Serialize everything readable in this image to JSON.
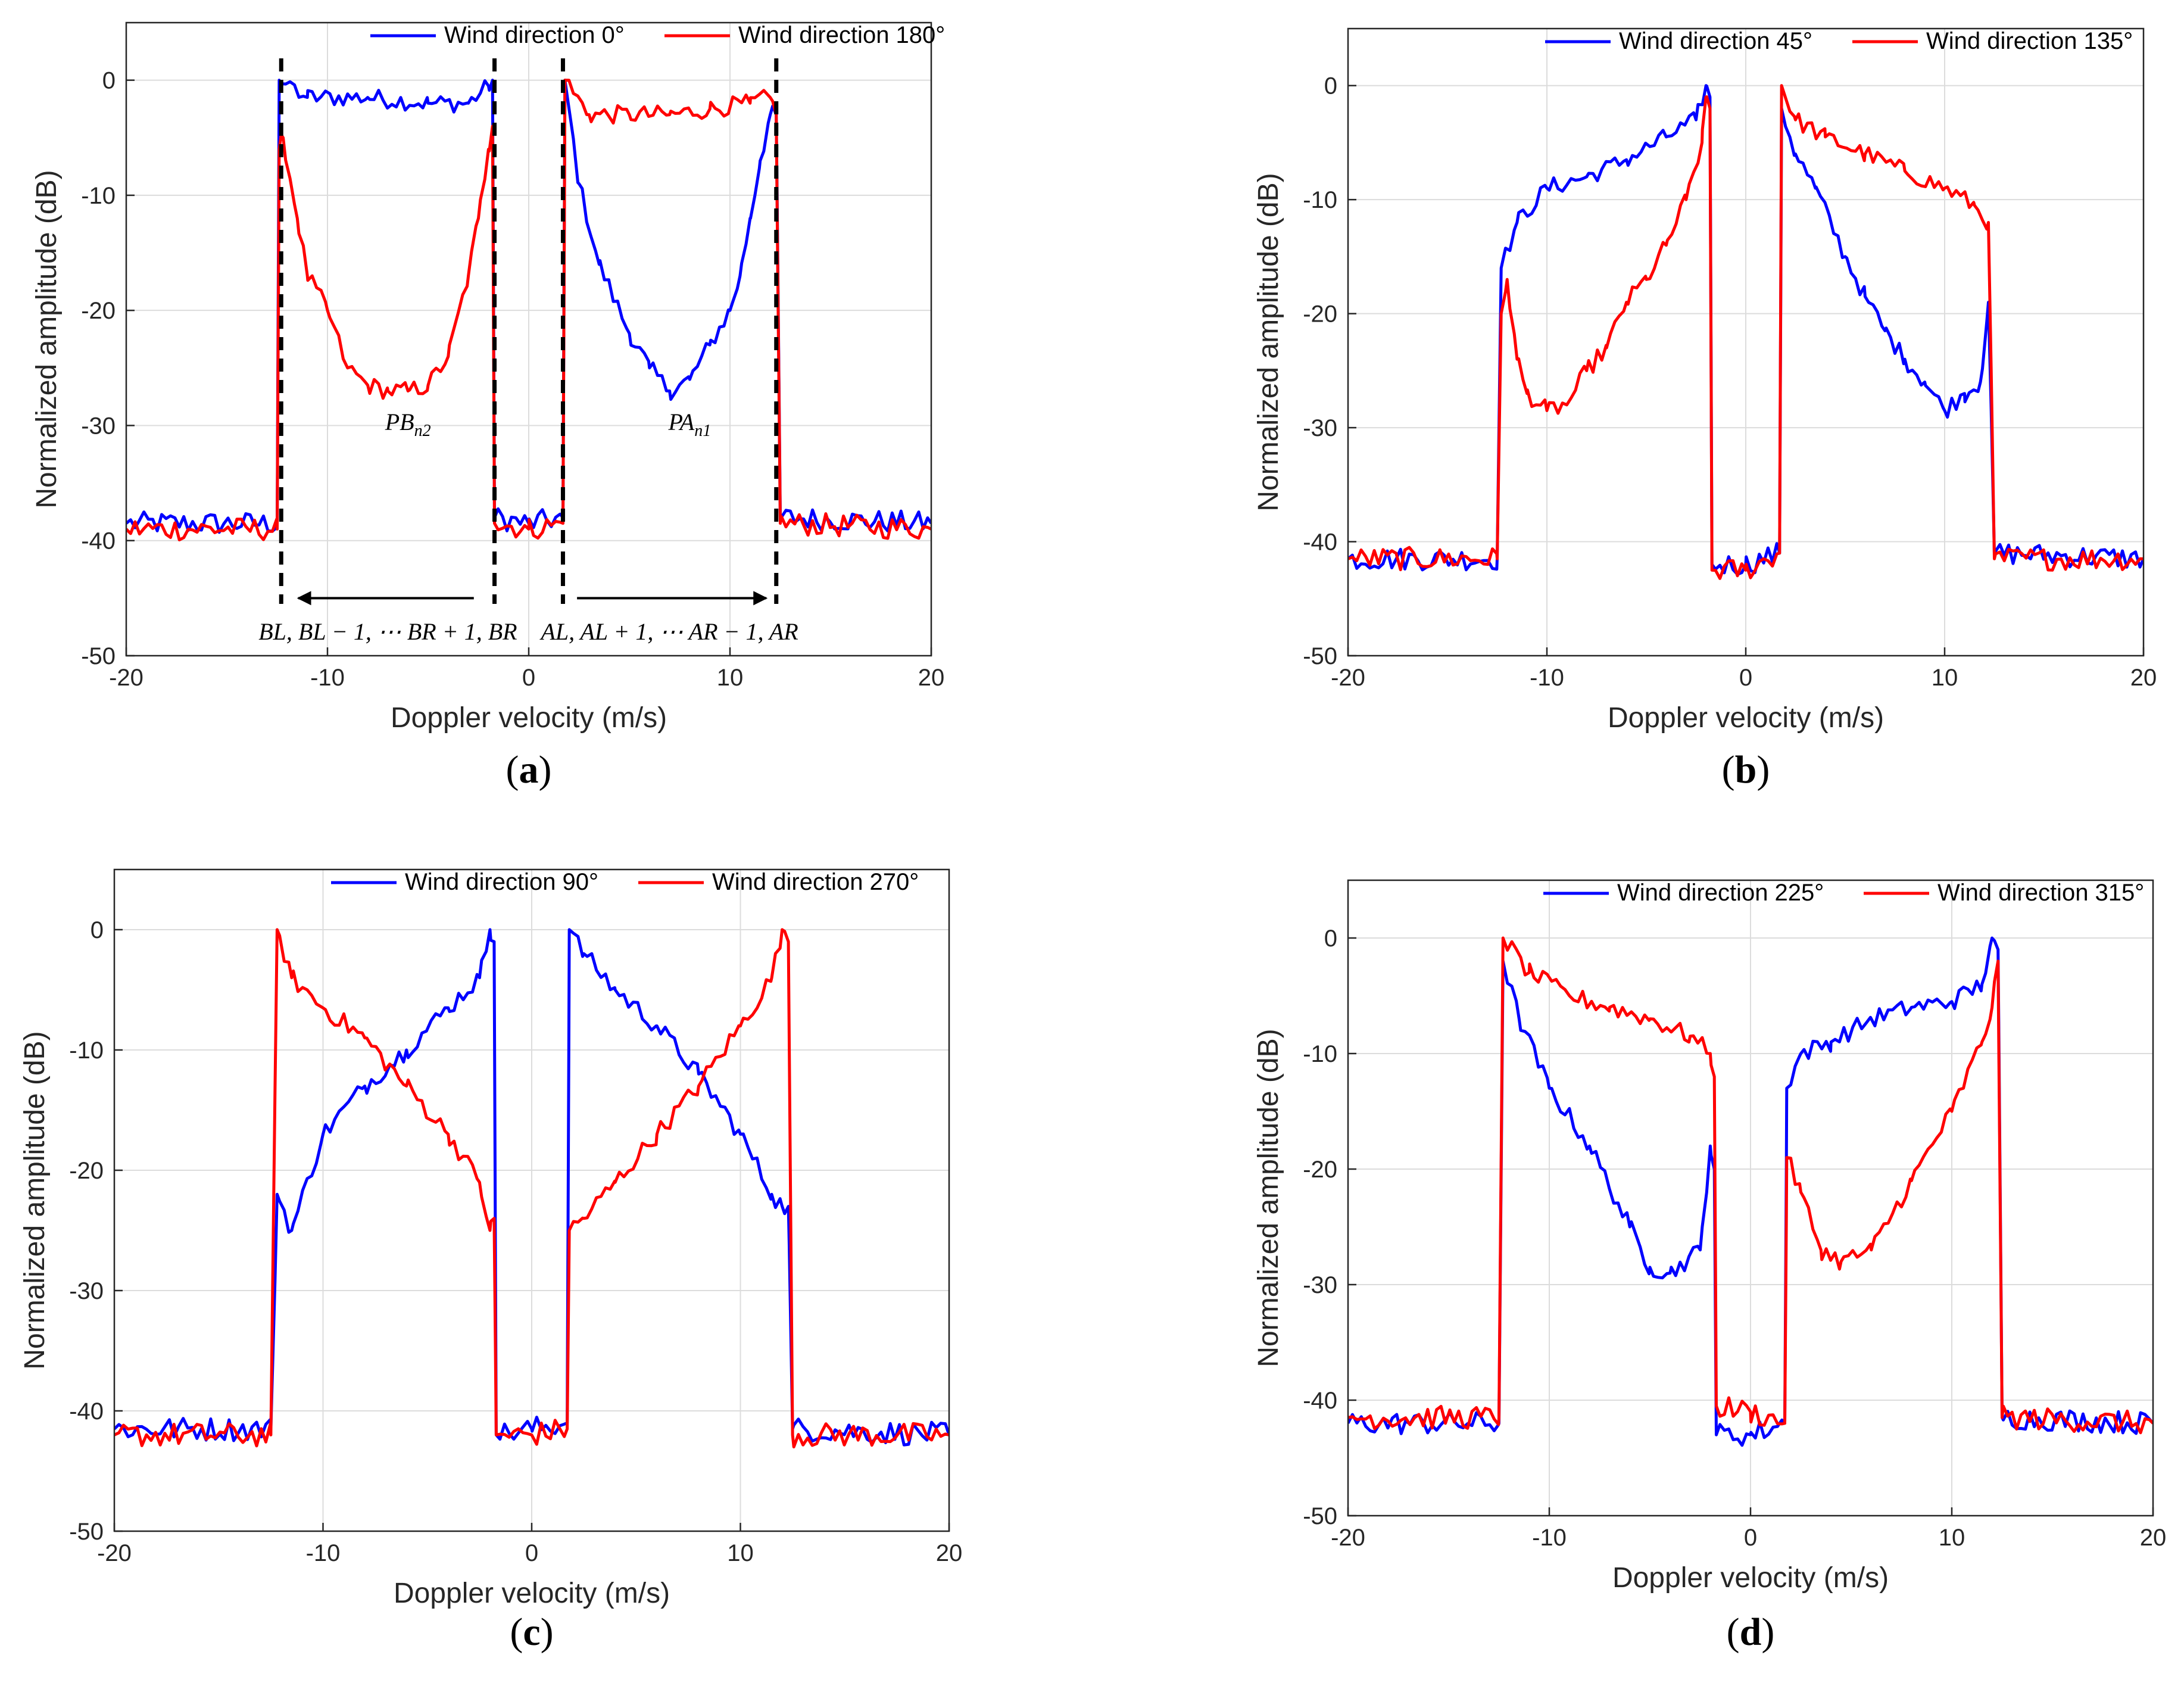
{
  "chart_data": [
    {
      "panel": "(a)",
      "panel_letter": "a",
      "type": "line",
      "xlabel": "Doppler velocity (m/s)",
      "ylabel": "Normalized amplitude (dB)",
      "xlim": [
        -20,
        20
      ],
      "ylim": [
        -50,
        5
      ],
      "xticks": [
        -20,
        -10,
        0,
        10,
        20
      ],
      "yticks": [
        0,
        -10,
        -20,
        -30,
        -40,
        -50
      ],
      "grid": true,
      "legend_position": "top",
      "series": [
        {
          "name": "Wind direction 0°",
          "color": "#0000ff",
          "x": [
            -20,
            -12.5,
            -12.4,
            -11,
            -8,
            -5,
            -3,
            -2,
            -1.8,
            -1.7,
            0,
            1.7,
            1.8,
            2.5,
            3.5,
            5,
            6,
            7,
            8,
            9,
            10,
            10.5,
            11,
            11.5,
            12,
            12.3,
            12.5,
            20
          ],
          "values": [
            -38.5,
            -38.5,
            0,
            -1.5,
            -1.5,
            -2,
            -2,
            -0.5,
            0,
            -38,
            -38.5,
            -38,
            0,
            -9,
            -16,
            -22,
            -25,
            -27,
            -26,
            -23,
            -20,
            -17,
            -12,
            -7,
            -3,
            -3,
            -38,
            -38.5
          ]
        },
        {
          "name": "Wind direction 180°",
          "color": "#ff0000",
          "x": [
            -20,
            -12.5,
            -12.4,
            -12.2,
            -11.5,
            -11,
            -10,
            -9,
            -8,
            -7,
            -6,
            -5,
            -4,
            -3,
            -2.5,
            -2,
            -1.8,
            -1.7,
            0,
            1.7,
            1.8,
            3,
            5,
            7,
            9,
            11,
            12,
            12.3,
            12.5,
            20
          ],
          "values": [
            -39,
            -39,
            -6,
            -5,
            -12,
            -17,
            -20,
            -25,
            -26.5,
            -27,
            -27,
            -26.5,
            -24,
            -17,
            -12,
            -6,
            -4,
            -38.5,
            -39,
            -38.5,
            0,
            -3,
            -3,
            -3,
            -2.5,
            -2,
            -1.5,
            -3,
            -38.5,
            -39
          ]
        }
      ],
      "annotations": {
        "pb": "PB",
        "pb_sub": "n2",
        "pa": "PA",
        "pa_sub": "n1",
        "left_range": "BL, BL − 1, ⋯ BR + 1, BR",
        "right_range": "AL, AL + 1, ⋯ AR − 1, AR",
        "dashed_x": [
          -12.3,
          -1.7,
          1.7,
          12.3
        ]
      }
    },
    {
      "panel": "(b)",
      "panel_letter": "b",
      "type": "line",
      "xlabel": "Doppler velocity (m/s)",
      "ylabel": "Normalized amplitude (dB)",
      "xlim": [
        -20,
        20
      ],
      "ylim": [
        -50,
        5
      ],
      "xticks": [
        -20,
        -10,
        0,
        10,
        20
      ],
      "yticks": [
        0,
        -10,
        -20,
        -30,
        -40,
        -50
      ],
      "grid": true,
      "legend_position": "top",
      "series": [
        {
          "name": "Wind direction 45°",
          "color": "#0000ff",
          "x": [
            -20,
            -12.5,
            -12.3,
            -11.5,
            -10,
            -8,
            -6,
            -4,
            -2.5,
            -2,
            -1.8,
            -1.7,
            0,
            1.7,
            1.8,
            2.5,
            3.5,
            5,
            6,
            7,
            8,
            9,
            10,
            11,
            11.8,
            12.2,
            12.5,
            20
          ],
          "values": [
            -41.5,
            -41.5,
            -16,
            -12,
            -9,
            -8,
            -6.5,
            -4.5,
            -3,
            0,
            -1,
            -42,
            -42,
            -41,
            -2,
            -6,
            -9,
            -15,
            -18.5,
            -21.5,
            -24,
            -26,
            -28.5,
            -27,
            -26,
            -19,
            -41,
            -41.5
          ]
        },
        {
          "name": "Wind direction 135°",
          "color": "#ff0000",
          "x": [
            -20,
            -12.5,
            -12.3,
            -12,
            -11.5,
            -11,
            -10,
            -9,
            -8,
            -7,
            -6,
            -5,
            -4,
            -3,
            -2.2,
            -2,
            -1.8,
            -1.7,
            0,
            1.7,
            1.8,
            2.5,
            4,
            6,
            8,
            10,
            11.5,
            12.2,
            12.5,
            20
          ],
          "values": [
            -41.5,
            -41.5,
            -20,
            -17,
            -24,
            -27,
            -28.5,
            -28,
            -25,
            -23,
            -19,
            -17,
            -14,
            -10,
            -5,
            -1,
            -2,
            -42.5,
            -42.5,
            -41,
            0,
            -3,
            -4.5,
            -6,
            -7.5,
            -9,
            -10.5,
            -12,
            -41.5,
            -41.5
          ]
        }
      ]
    },
    {
      "panel": "(c)",
      "panel_letter": "c",
      "type": "line",
      "xlabel": "Doppler velocity (m/s)",
      "ylabel": "Normalized amplitude (dB)",
      "xlim": [
        -20,
        20
      ],
      "ylim": [
        -50,
        5
      ],
      "xticks": [
        -20,
        -10,
        0,
        10,
        20
      ],
      "yticks": [
        0,
        -10,
        -20,
        -30,
        -40,
        -50
      ],
      "grid": true,
      "legend_position": "top",
      "series": [
        {
          "name": "Wind direction 90°",
          "color": "#0000ff",
          "x": [
            -20,
            -12.5,
            -12.2,
            -11.5,
            -10,
            -8,
            -6,
            -4,
            -2.5,
            -2,
            -1.8,
            -1.7,
            0,
            1.7,
            1.8,
            2.5,
            4,
            6,
            8,
            10,
            11.5,
            12,
            12.3,
            12.5,
            20
          ],
          "values": [
            -41.5,
            -41.5,
            -22,
            -25,
            -17,
            -13,
            -10,
            -6.5,
            -4,
            0,
            -1,
            -42,
            -41.5,
            -41,
            0,
            -2,
            -5,
            -8,
            -12,
            -17,
            -22,
            -23,
            -23,
            -41.5,
            -42
          ]
        },
        {
          "name": "Wind direction 270°",
          "color": "#ff0000",
          "x": [
            -20,
            -12.5,
            -12.2,
            -11.5,
            -10,
            -8,
            -6,
            -4,
            -2.5,
            -2,
            -1.8,
            -1.7,
            0,
            1.7,
            1.8,
            2.5,
            4,
            6,
            8,
            10,
            11.5,
            12,
            12.3,
            12.5,
            20
          ],
          "values": [
            -42,
            -42,
            0,
            -4,
            -6.5,
            -9,
            -13,
            -17,
            -21,
            -25,
            -24,
            -42,
            -42,
            -41.5,
            -25,
            -24,
            -21,
            -17,
            -13,
            -8,
            -4,
            0,
            -1,
            -42,
            -42
          ]
        }
      ]
    },
    {
      "panel": "(d)",
      "panel_letter": "d",
      "type": "line",
      "xlabel": "Doppler velocity (m/s)",
      "ylabel": "Normalized amplitude (dB)",
      "xlim": [
        -20,
        20
      ],
      "ylim": [
        -50,
        5
      ],
      "xticks": [
        -20,
        -10,
        0,
        10,
        20
      ],
      "yticks": [
        0,
        -10,
        -20,
        -30,
        -40,
        -50
      ],
      "grid": true,
      "legend_position": "top",
      "series": [
        {
          "name": "Wind direction 225°",
          "color": "#0000ff",
          "x": [
            -20,
            -12.5,
            -12.3,
            -11.5,
            -10,
            -8,
            -6,
            -5,
            -4,
            -2.5,
            -2,
            -1.8,
            -1.7,
            0,
            1.7,
            1.8,
            2.5,
            4,
            6,
            8,
            10,
            11.5,
            12,
            12.3,
            12.5,
            20
          ],
          "values": [
            -42,
            -42,
            -2,
            -7,
            -13,
            -18,
            -25,
            -28.5,
            -29,
            -27,
            -18,
            -20,
            -43,
            -43,
            -42,
            -13,
            -10,
            -9,
            -7,
            -6,
            -5.5,
            -4,
            0,
            -1,
            -41.5,
            -42
          ]
        },
        {
          "name": "Wind direction 315°",
          "color": "#ff0000",
          "x": [
            -20,
            -12.5,
            -12.3,
            -11,
            -9,
            -7,
            -5,
            -3,
            -2,
            -1.8,
            -1.7,
            0,
            1.7,
            1.8,
            2.5,
            3.5,
            4.5,
            6,
            8,
            10,
            11.5,
            12,
            12.3,
            12.5,
            20
          ],
          "values": [
            -41.5,
            -41.5,
            0,
            -3,
            -5,
            -6,
            -7,
            -8.5,
            -10,
            -12,
            -40.5,
            -41,
            -42,
            -19,
            -22,
            -27,
            -28,
            -27,
            -21,
            -15,
            -9,
            -6,
            -2,
            -41.5,
            -42
          ]
        }
      ]
    }
  ]
}
